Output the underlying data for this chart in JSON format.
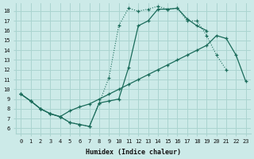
{
  "xlabel": "Humidex (Indice chaleur)",
  "bg_color": "#cceae8",
  "grid_color": "#aad4d0",
  "line_color": "#1a6b5a",
  "xlim": [
    -0.5,
    23.5
  ],
  "ylim": [
    5.5,
    18.8
  ],
  "xticks": [
    0,
    1,
    2,
    3,
    4,
    5,
    6,
    7,
    8,
    9,
    10,
    11,
    12,
    13,
    14,
    15,
    16,
    17,
    18,
    19,
    20,
    21,
    22,
    23
  ],
  "yticks": [
    6,
    7,
    8,
    9,
    10,
    11,
    12,
    13,
    14,
    15,
    16,
    17,
    18
  ],
  "curve1_x": [
    0,
    1,
    2,
    3,
    4,
    5,
    6,
    7,
    8,
    9,
    10,
    11,
    12,
    13,
    14,
    15,
    16,
    17,
    18,
    19,
    20,
    21,
    22,
    23
  ],
  "curve1_y": [
    9.5,
    8.8,
    8.0,
    7.5,
    7.2,
    6.6,
    6.4,
    6.2,
    8.6,
    11.2,
    16.5,
    18.3,
    18.0,
    18.2,
    18.5,
    18.2,
    18.3,
    17.0,
    17.0,
    15.5,
    13.5,
    12.0,
    null,
    null
  ],
  "curve2_x": [
    0,
    1,
    2,
    3,
    4,
    5,
    6,
    7,
    8,
    9,
    10,
    11,
    12,
    13,
    14,
    15,
    16,
    17,
    18,
    19,
    20,
    21,
    22,
    23
  ],
  "curve2_y": [
    9.5,
    8.8,
    8.0,
    7.5,
    7.2,
    7.8,
    8.2,
    8.5,
    9.0,
    9.5,
    10.0,
    10.5,
    11.0,
    11.5,
    12.0,
    12.5,
    13.0,
    13.5,
    14.0,
    14.5,
    15.5,
    15.2,
    13.5,
    10.8
  ],
  "curve3_x": [
    0,
    1,
    2,
    3,
    4,
    5,
    6,
    7,
    8,
    9,
    10,
    11,
    12,
    13,
    14,
    15,
    16,
    17,
    18,
    19,
    20,
    21,
    22,
    23
  ],
  "curve3_y": [
    9.5,
    8.8,
    8.0,
    7.5,
    7.2,
    6.6,
    6.4,
    6.2,
    8.6,
    8.8,
    9.0,
    12.2,
    16.5,
    17.0,
    18.2,
    18.2,
    18.3,
    17.2,
    16.5,
    16.0,
    null,
    null,
    null,
    null
  ]
}
